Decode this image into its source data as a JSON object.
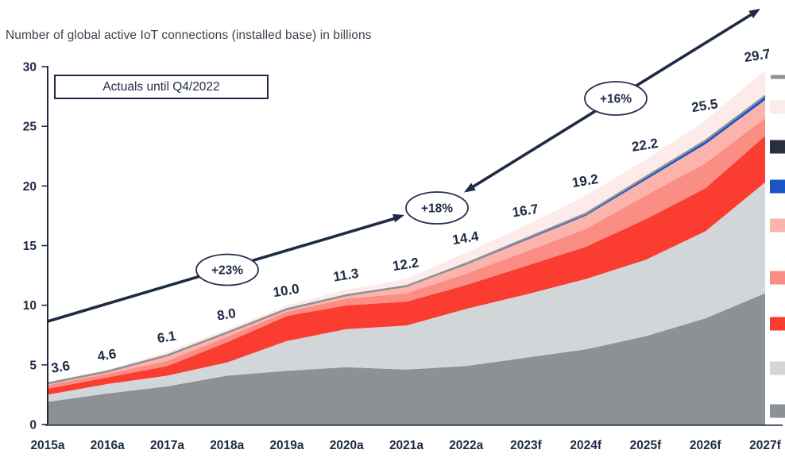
{
  "title": "Number of global active IoT connections (installed base) in billions",
  "annotation_box": "Actuals until Q4/2022",
  "colors": {
    "accent_navy": "#1f2a44",
    "total_line_gray": "#8c9298",
    "background": "#ffffff"
  },
  "chart_data": {
    "type": "area",
    "stacked": true,
    "grid": false,
    "legend_position": "right-cut-off",
    "title": "Number of global active IoT connections (installed base) in billions",
    "xlabel": "",
    "ylabel": "",
    "ylim": [
      0,
      30
    ],
    "y_ticks": [
      0,
      5,
      10,
      15,
      20,
      25,
      30
    ],
    "categories": [
      "2015a",
      "2016a",
      "2017a",
      "2018a",
      "2019a",
      "2020a",
      "2021a",
      "2022a",
      "2023f",
      "2024f",
      "2025f",
      "2026f",
      "2027f"
    ],
    "totals_display": [
      "3.6",
      "4.6",
      "6.1",
      "8.0",
      "10.0",
      "11.3",
      "12.2",
      "14.4",
      "16.7",
      "19.2",
      "22.2",
      "25.5",
      "29.7"
    ],
    "series": [
      {
        "name": "segment-dark-gray",
        "color": "#8d9095",
        "values": [
          1.9,
          2.6,
          3.2,
          4.1,
          4.5,
          4.8,
          4.6,
          4.9,
          5.6,
          6.3,
          7.4,
          8.9,
          11.0
        ]
      },
      {
        "name": "segment-light-gray",
        "color": "#d3d6d9",
        "values": [
          0.6,
          0.8,
          0.9,
          1.1,
          2.5,
          3.2,
          3.7,
          4.8,
          5.3,
          5.9,
          6.4,
          7.3,
          9.3
        ]
      },
      {
        "name": "segment-red",
        "color": "#fb3c30",
        "values": [
          0.5,
          0.55,
          0.8,
          1.7,
          2.1,
          2.0,
          2.0,
          2.0,
          2.4,
          2.7,
          3.4,
          3.6,
          3.9
        ]
      },
      {
        "name": "segment-salmon",
        "color": "#fa8d84",
        "values": [
          0.3,
          0.3,
          0.45,
          0.45,
          0.35,
          0.55,
          0.7,
          0.95,
          1.2,
          1.5,
          2.0,
          2.1,
          1.5
        ]
      },
      {
        "name": "segment-pink",
        "color": "#fcb3ab",
        "values": [
          0.15,
          0.2,
          0.45,
          0.35,
          0.2,
          0.25,
          0.55,
          0.75,
          0.95,
          1.1,
          1.3,
          1.6,
          1.5
        ]
      },
      {
        "name": "segment-blue",
        "color": "#1a54c8",
        "values": [
          0,
          0,
          0,
          0,
          0.02,
          0.04,
          0.06,
          0.1,
          0.14,
          0.18,
          0.25,
          0.3,
          0.35
        ]
      },
      {
        "name": "segment-pale-pink",
        "color": "#fcebe9",
        "values": [
          0.15,
          0.15,
          0.3,
          0.3,
          0.33,
          0.46,
          0.59,
          0.9,
          1.11,
          1.52,
          1.45,
          1.7,
          2.15
        ]
      }
    ],
    "total_marker_line": {
      "name": "total-marker-line",
      "color": "#8c9298"
    },
    "growth_labels": [
      "+23%",
      "+18%",
      "+16%"
    ]
  },
  "legend": {
    "items": [
      {
        "name": "total-line-marker",
        "type": "line",
        "color": "#8c9298"
      },
      {
        "name": "segment-pale-pink",
        "type": "square",
        "color": "#fcebe9"
      },
      {
        "name": "segment-navy",
        "type": "square",
        "color": "#2a2f3e"
      },
      {
        "name": "segment-blue",
        "type": "square",
        "color": "#1a54c8"
      },
      {
        "name": "segment-pink",
        "type": "square",
        "color": "#fcb3ab"
      },
      {
        "name": "segment-salmon",
        "type": "square",
        "color": "#fa8d84"
      },
      {
        "name": "segment-red",
        "type": "square",
        "color": "#fb3c30"
      },
      {
        "name": "segment-light-gray",
        "type": "square",
        "color": "#d3d6d9"
      },
      {
        "name": "segment-dark-gray",
        "type": "square",
        "color": "#8d9095"
      }
    ]
  }
}
